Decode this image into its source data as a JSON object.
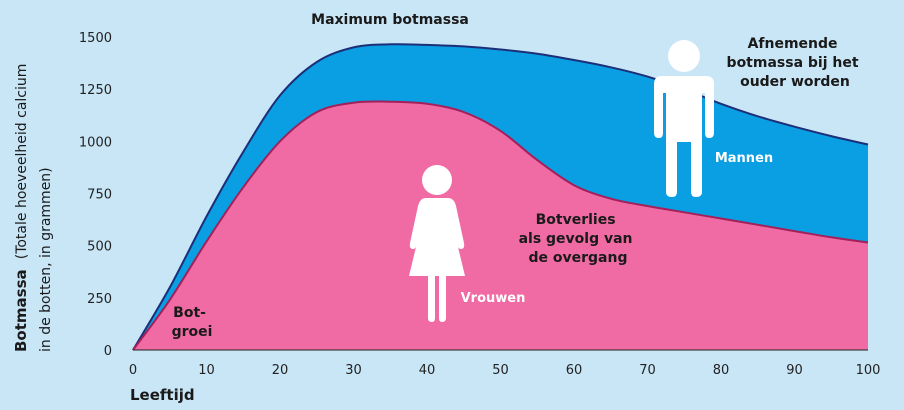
{
  "chart_data": {
    "type": "area",
    "x": [
      0,
      5,
      10,
      15,
      20,
      25,
      30,
      35,
      40,
      45,
      50,
      55,
      60,
      65,
      70,
      75,
      80,
      85,
      90,
      95,
      100
    ],
    "series": [
      {
        "name": "Mannen",
        "color": "#0a9ee2",
        "line_color": "#1c2f78",
        "values": [
          0,
          300,
          640,
          950,
          1220,
          1380,
          1450,
          1465,
          1462,
          1455,
          1440,
          1420,
          1390,
          1355,
          1310,
          1250,
          1180,
          1120,
          1070,
          1025,
          985
        ]
      },
      {
        "name": "Vrouwen",
        "color": "#f06aa3",
        "line_color": "#a3205a",
        "values": [
          0,
          240,
          520,
          780,
          1000,
          1140,
          1185,
          1190,
          1180,
          1140,
          1050,
          910,
          790,
          725,
          690,
          660,
          630,
          600,
          570,
          540,
          515
        ]
      }
    ],
    "xlim": [
      0,
      100
    ],
    "ylim": [
      0,
      1500
    ],
    "xticks": [
      0,
      10,
      20,
      30,
      40,
      50,
      60,
      70,
      80,
      90,
      100
    ],
    "yticks": [
      0,
      250,
      500,
      750,
      1000,
      1250,
      1500
    ],
    "xlabel": "Leeftijd",
    "ylabel_bold": "Botmassa",
    "ylabel_line1": "(Totale hoeveelheid calcium",
    "ylabel_line2": "in de botten, in grammen)",
    "grid": false,
    "annotations": {
      "max": "Maximum botmassa",
      "decline": [
        "Afnemende",
        "botmassa bij het",
        "ouder worden"
      ],
      "menopause": [
        "Botverlies",
        "als gevolg van",
        "de overgang"
      ],
      "growth": [
        "Bot-",
        "groei"
      ]
    },
    "icons": {
      "man": "man-icon",
      "woman": "woman-icon"
    }
  }
}
